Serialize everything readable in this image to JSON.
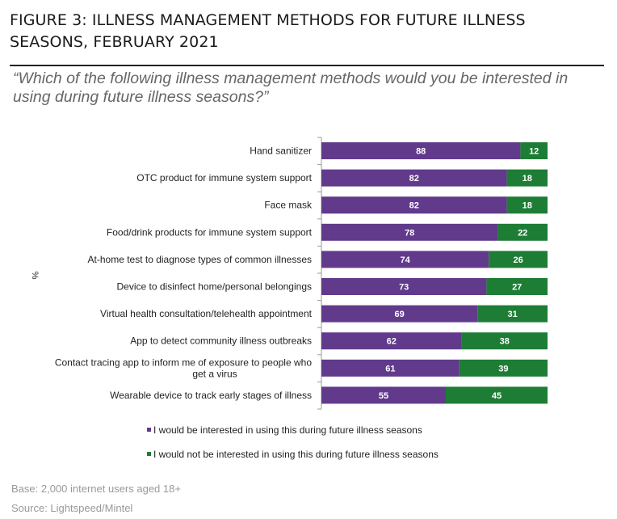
{
  "title": "FIGURE 3: ILLNESS MANAGEMENT METHODS FOR FUTURE ILLNESS SEASONS, FEBRUARY 2021",
  "question": "“Which of the following illness management methods would you be interested in using during future illness seasons?”",
  "footer": {
    "base": "Base: 2,000 internet users aged 18+",
    "source": "Source: Lightspeed/Mintel"
  },
  "colors": {
    "interested": "#613a8c",
    "not_interested": "#1e7d35"
  },
  "chart_data": {
    "type": "bar",
    "orientation": "horizontal",
    "stacked": true,
    "ylabel": "%",
    "xlim": [
      0,
      100
    ],
    "categories": [
      [
        "Hand sanitizer"
      ],
      [
        "OTC product for immune system support"
      ],
      [
        "Face mask"
      ],
      [
        "Food/drink products for immune system support"
      ],
      [
        "At-home test to diagnose types of common illnesses"
      ],
      [
        "Device to disinfect home/personal belongings"
      ],
      [
        "Virtual health consultation/telehealth appointment"
      ],
      [
        "App to detect community illness outbreaks"
      ],
      [
        "Contact tracing app to inform me of exposure to people who",
        "get a virus"
      ],
      [
        "Wearable device to track early stages of illness"
      ]
    ],
    "series": [
      {
        "name": "I would be interested in using this during future illness seasons",
        "values": [
          88,
          82,
          82,
          78,
          74,
          73,
          69,
          62,
          61,
          55
        ]
      },
      {
        "name": "I would not be interested in using this during future illness seasons",
        "values": [
          12,
          18,
          18,
          22,
          26,
          27,
          31,
          38,
          39,
          45
        ]
      }
    ],
    "legend_position": "bottom"
  }
}
